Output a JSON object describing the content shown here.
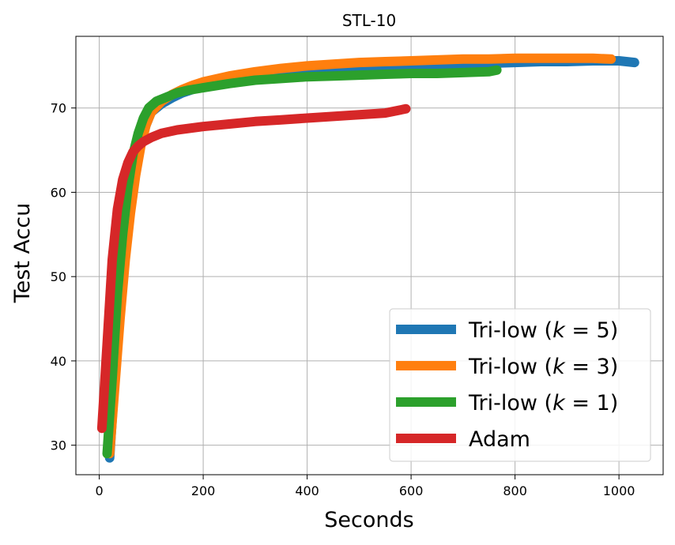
{
  "chart_data": {
    "type": "line",
    "title": "STL-10",
    "xlabel": "Seconds",
    "ylabel": "Test Accu",
    "xlim": [
      -45,
      1085
    ],
    "ylim": [
      26.5,
      78.5
    ],
    "xticks": [
      0,
      200,
      400,
      600,
      800,
      1000
    ],
    "yticks": [
      30,
      40,
      50,
      60,
      70
    ],
    "grid": true,
    "legend_position": "lower-right",
    "series": [
      {
        "name": "Tri-low (k=5)",
        "label_prefix": "Tri-low (",
        "label_var": "k",
        "label_eq": " = 5)",
        "color": "#1f77b4",
        "x": [
          20,
          30,
          40,
          50,
          60,
          70,
          80,
          90,
          100,
          120,
          140,
          160,
          180,
          200,
          250,
          300,
          350,
          400,
          450,
          500,
          550,
          600,
          650,
          700,
          750,
          800,
          850,
          900,
          950,
          1000,
          1030
        ],
        "y": [
          28.5,
          38,
          47,
          54,
          59,
          63,
          66,
          68,
          69.5,
          70.5,
          71.2,
          71.8,
          72.2,
          72.6,
          73.1,
          73.5,
          73.9,
          74.2,
          74.4,
          74.6,
          74.8,
          75.0,
          75.1,
          75.2,
          75.3,
          75.4,
          75.5,
          75.5,
          75.6,
          75.6,
          75.4
        ]
      },
      {
        "name": "Tri-low (k=3)",
        "label_prefix": "Tri-low (",
        "label_var": "k",
        "label_eq": " = 3)",
        "color": "#ff7f0e",
        "x": [
          20,
          30,
          40,
          50,
          60,
          70,
          80,
          90,
          100,
          120,
          140,
          160,
          180,
          200,
          250,
          300,
          350,
          400,
          450,
          500,
          550,
          600,
          650,
          700,
          750,
          800,
          850,
          900,
          950,
          985
        ],
        "y": [
          29,
          37,
          45,
          52,
          57.5,
          62,
          65.5,
          68,
          69.5,
          70.8,
          71.6,
          72.2,
          72.7,
          73.1,
          73.8,
          74.3,
          74.7,
          75.0,
          75.2,
          75.4,
          75.5,
          75.6,
          75.7,
          75.8,
          75.8,
          75.9,
          75.9,
          75.9,
          75.9,
          75.8
        ]
      },
      {
        "name": "Tri-low (k=1)",
        "label_prefix": "Tri-low (",
        "label_var": "k",
        "label_eq": " = 1)",
        "color": "#2ca02c",
        "x": [
          15,
          25,
          35,
          45,
          55,
          65,
          75,
          85,
          95,
          110,
          130,
          150,
          170,
          200,
          250,
          300,
          350,
          400,
          450,
          500,
          550,
          600,
          650,
          700,
          750,
          765
        ],
        "y": [
          29,
          38,
          48,
          55,
          60.5,
          64.5,
          67,
          68.8,
          70,
          70.8,
          71.3,
          71.8,
          72.1,
          72.4,
          72.9,
          73.3,
          73.5,
          73.7,
          73.8,
          73.9,
          74.0,
          74.1,
          74.1,
          74.2,
          74.3,
          74.5
        ]
      },
      {
        "name": "Adam",
        "label_prefix": "Adam",
        "label_var": "",
        "label_eq": "",
        "color": "#d62728",
        "x": [
          5,
          15,
          25,
          35,
          45,
          55,
          65,
          75,
          85,
          100,
          120,
          150,
          200,
          250,
          300,
          350,
          400,
          450,
          500,
          550,
          590
        ],
        "y": [
          32,
          42,
          52,
          58,
          61.5,
          63.5,
          64.8,
          65.5,
          66,
          66.5,
          67,
          67.4,
          67.8,
          68.1,
          68.4,
          68.6,
          68.8,
          69.0,
          69.2,
          69.4,
          69.9
        ]
      }
    ]
  }
}
